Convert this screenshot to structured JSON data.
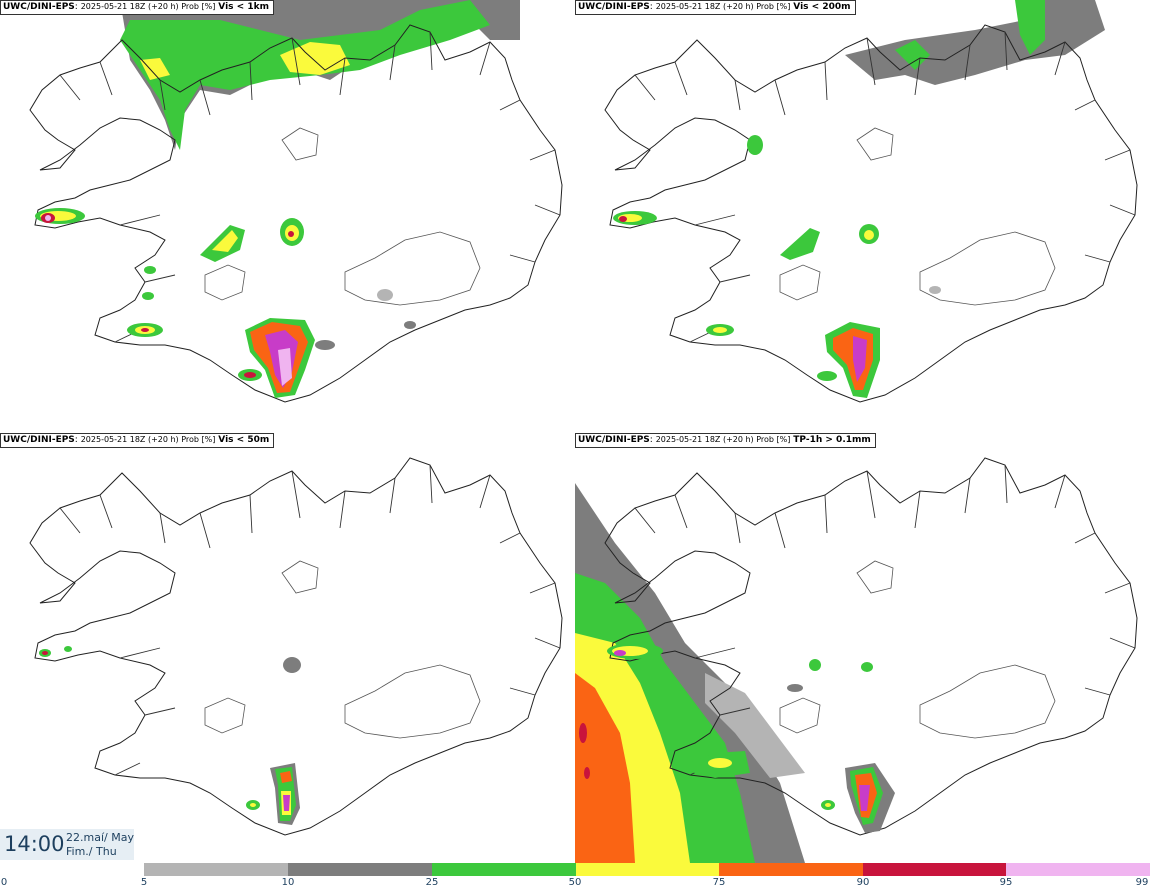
{
  "panels": [
    {
      "model": "UWC/DINI-EPS",
      "meta": "2025-05-21 18Z (+20 h) Prob [%]",
      "param": "Vis < 1km"
    },
    {
      "model": "UWC/DINI-EPS",
      "meta": "2025-05-21 18Z (+20 h) Prob [%]",
      "param": "Vis < 200m"
    },
    {
      "model": "UWC/DINI-EPS",
      "meta": "2025-05-21 18Z (+20 h) Prob [%]",
      "param": "Vis < 50m"
    },
    {
      "model": "UWC/DINI-EPS",
      "meta": "2025-05-21 18Z (+20 h) Prob [%]",
      "param": "TP-1h > 0.1mm"
    }
  ],
  "time": {
    "clock": "14:00",
    "date": "22.maí/ May",
    "day": "Fim./ Thu"
  },
  "colorbar": {
    "ticks": [
      "0",
      "5",
      "10",
      "25",
      "50",
      "75",
      "90",
      "95",
      "99"
    ],
    "colors": [
      "#b4b4b4",
      "#7d7d7d",
      "#3cc83c",
      "#fafa3c",
      "#fa6414",
      "#c8143c",
      "#c83cc8",
      "#f0b4f0"
    ]
  }
}
